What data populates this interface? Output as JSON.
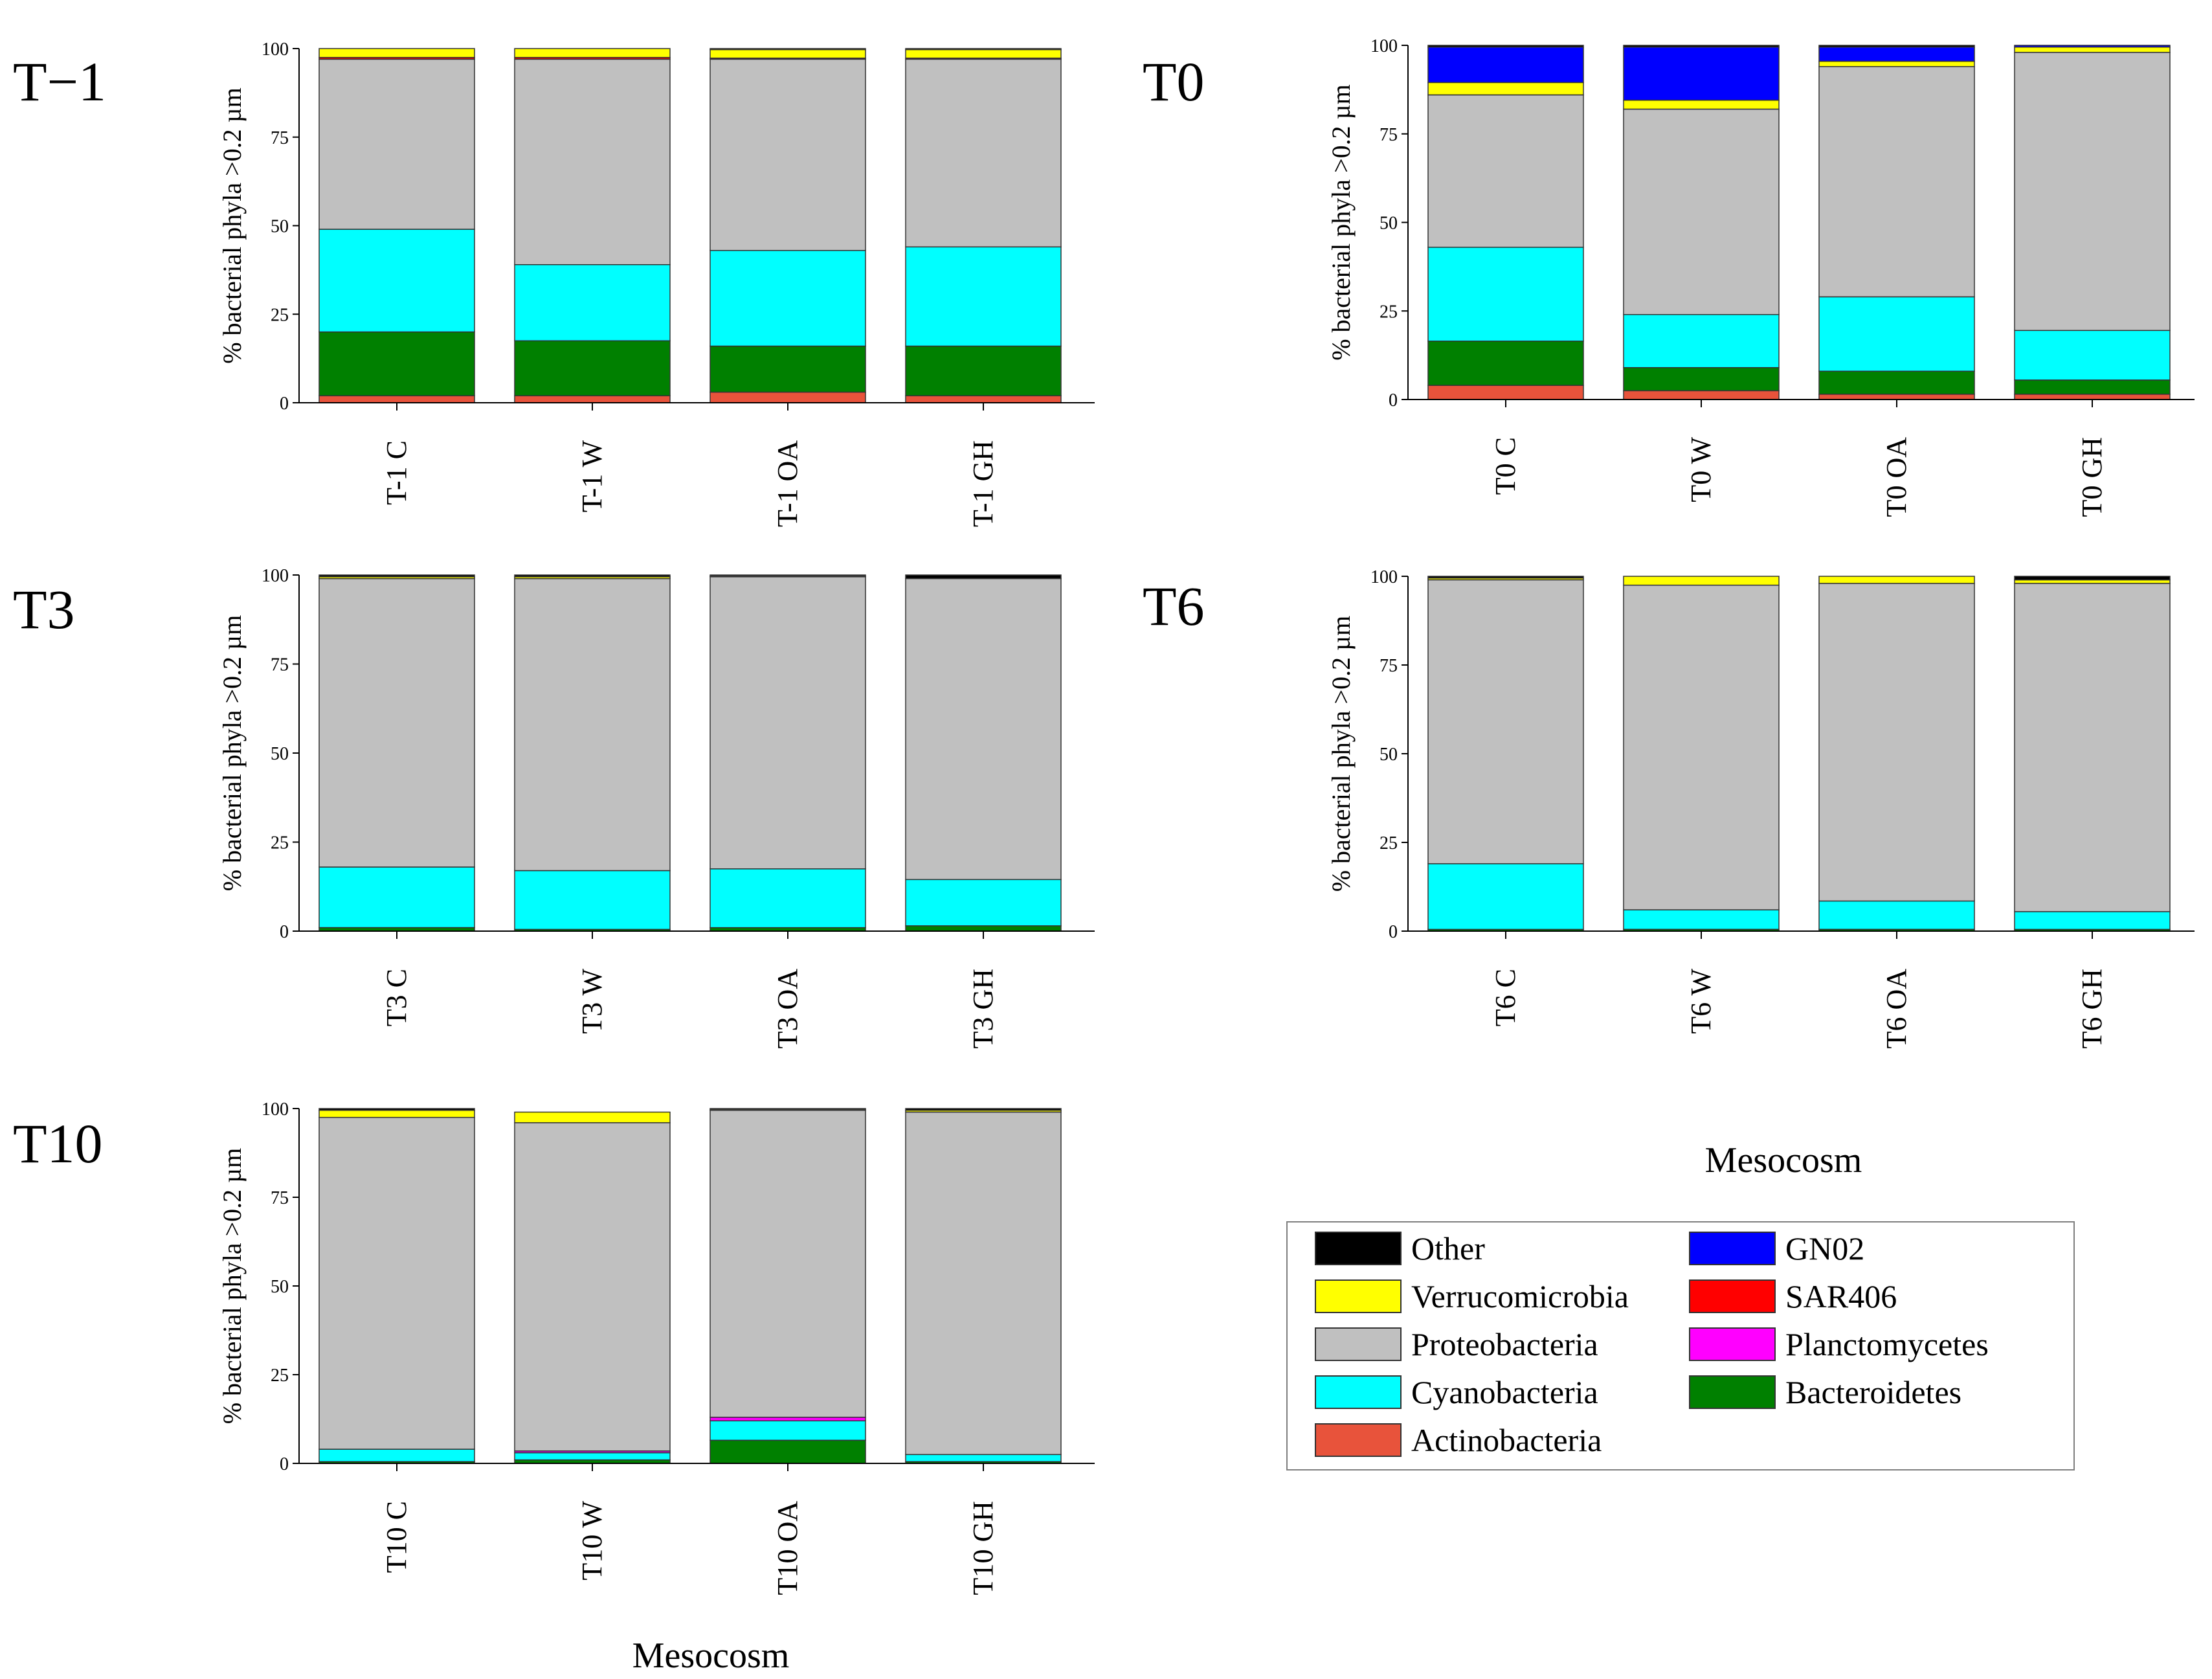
{
  "figure": {
    "xlabel": "Mesocosm",
    "ylabel": "% bacterial phyla >0.2 µm",
    "yticks": [
      "0",
      "25",
      "50",
      "75",
      "100"
    ]
  },
  "legend": [
    {
      "name": "Other",
      "color": "#000000"
    },
    {
      "name": "Verrucomicrobia",
      "color": "#ffff00"
    },
    {
      "name": "Proteobacteria",
      "color": "#c0c0c0"
    },
    {
      "name": "Cyanobacteria",
      "color": "#00ffff"
    },
    {
      "name": "Actinobacteria",
      "color": "#e8533b"
    },
    {
      "name": "GN02",
      "color": "#0000ff"
    },
    {
      "name": "SAR406",
      "color": "#ff0000"
    },
    {
      "name": "Planctomycetes",
      "color": "#ff00ff"
    },
    {
      "name": "Bacteroidetes",
      "color": "#008000"
    }
  ],
  "chart_data": [
    {
      "type": "bar",
      "stacked": true,
      "title": "T−1",
      "xlabel": "",
      "ylabel": "% bacterial phyla >0.2 µm",
      "ylim": [
        0,
        100
      ],
      "categories": [
        "T-1 C",
        "T-1 W",
        "T-1 OA",
        "T-1 GH"
      ],
      "series": [
        {
          "name": "Actinobacteria",
          "values": [
            2,
            2,
            3,
            2
          ]
        },
        {
          "name": "Bacteroidetes",
          "values": [
            18,
            15.5,
            13,
            14
          ]
        },
        {
          "name": "Cyanobacteria",
          "values": [
            29,
            21.5,
            27,
            28
          ]
        },
        {
          "name": "Proteobacteria",
          "values": [
            48,
            58,
            54,
            53
          ]
        },
        {
          "name": "SAR406",
          "values": [
            0.5,
            0.5,
            0.3,
            0.3
          ]
        },
        {
          "name": "Verrucomicrobia",
          "values": [
            2.5,
            2.5,
            2.4,
            2.4
          ]
        },
        {
          "name": "Other",
          "values": [
            0,
            0,
            0.3,
            0.3
          ]
        }
      ]
    },
    {
      "type": "bar",
      "stacked": true,
      "title": "T0",
      "xlabel": "",
      "ylabel": "% bacterial phyla >0.2 µm",
      "ylim": [
        0,
        100
      ],
      "categories": [
        "T0 C",
        "T0 W",
        "T0 OA",
        "T0 GH"
      ],
      "series": [
        {
          "name": "Actinobacteria",
          "values": [
            4,
            2.5,
            1.5,
            1.5
          ]
        },
        {
          "name": "Bacteroidetes",
          "values": [
            12.5,
            6.5,
            6.5,
            4
          ]
        },
        {
          "name": "Cyanobacteria",
          "values": [
            26.5,
            15,
            21,
            14
          ]
        },
        {
          "name": "Proteobacteria",
          "values": [
            43,
            58,
            65,
            78.5
          ]
        },
        {
          "name": "Verrucomicrobia",
          "values": [
            3.5,
            2.5,
            1.5,
            1.5
          ]
        },
        {
          "name": "GN02",
          "values": [
            10,
            15,
            4,
            0.5
          ]
        },
        {
          "name": "Other",
          "values": [
            0.5,
            0.5,
            0.5,
            0
          ]
        }
      ]
    },
    {
      "type": "bar",
      "stacked": true,
      "title": "T3",
      "xlabel": "",
      "ylabel": "% bacterial phyla >0.2 µm",
      "ylim": [
        0,
        100
      ],
      "categories": [
        "T3 C",
        "T3 W",
        "T3 OA",
        "T3 GH"
      ],
      "series": [
        {
          "name": "Bacteroidetes",
          "values": [
            1,
            0.5,
            1,
            1.5
          ]
        },
        {
          "name": "Cyanobacteria",
          "values": [
            17,
            16.5,
            16.5,
            13
          ]
        },
        {
          "name": "Proteobacteria",
          "values": [
            81,
            82,
            82,
            84.5
          ]
        },
        {
          "name": "Verrucomicrobia",
          "values": [
            0.5,
            0.5,
            0.2,
            0
          ]
        },
        {
          "name": "Other",
          "values": [
            0.5,
            0.5,
            0.3,
            1
          ]
        }
      ]
    },
    {
      "type": "bar",
      "stacked": true,
      "title": "T6",
      "xlabel": "Mesocosm",
      "ylabel": "% bacterial phyla >0.2 µm",
      "ylim": [
        0,
        100
      ],
      "categories": [
        "T6 C",
        "T6 W",
        "T6 OA",
        "T6 GH"
      ],
      "series": [
        {
          "name": "Bacteroidetes",
          "values": [
            0.5,
            0.5,
            0.5,
            0.5
          ]
        },
        {
          "name": "Cyanobacteria",
          "values": [
            18.5,
            5.5,
            8,
            5
          ]
        },
        {
          "name": "Proteobacteria",
          "values": [
            80,
            91.5,
            89.5,
            92.5
          ]
        },
        {
          "name": "Verrucomicrobia",
          "values": [
            0.5,
            2.5,
            2,
            1
          ]
        },
        {
          "name": "Other",
          "values": [
            0.5,
            0,
            0,
            1
          ]
        }
      ]
    },
    {
      "type": "bar",
      "stacked": true,
      "title": "T10",
      "xlabel": "Mesocosm",
      "ylabel": "% bacterial phyla >0.2 µm",
      "ylim": [
        0,
        100
      ],
      "categories": [
        "T10 C",
        "T10 W",
        "T10 OA",
        "T10 GH"
      ],
      "series": [
        {
          "name": "Bacteroidetes",
          "values": [
            0.5,
            1,
            6.5,
            0.5
          ]
        },
        {
          "name": "Cyanobacteria",
          "values": [
            3.5,
            2,
            5.5,
            2
          ]
        },
        {
          "name": "Planctomycetes",
          "values": [
            0,
            0.5,
            1,
            0
          ]
        },
        {
          "name": "Proteobacteria",
          "values": [
            93.5,
            92.5,
            86.5,
            96.5
          ]
        },
        {
          "name": "Verrucomicrobia",
          "values": [
            2,
            3,
            0.3,
            0.5
          ]
        },
        {
          "name": "Other",
          "values": [
            0.5,
            0,
            0.2,
            0.5
          ]
        }
      ]
    }
  ]
}
